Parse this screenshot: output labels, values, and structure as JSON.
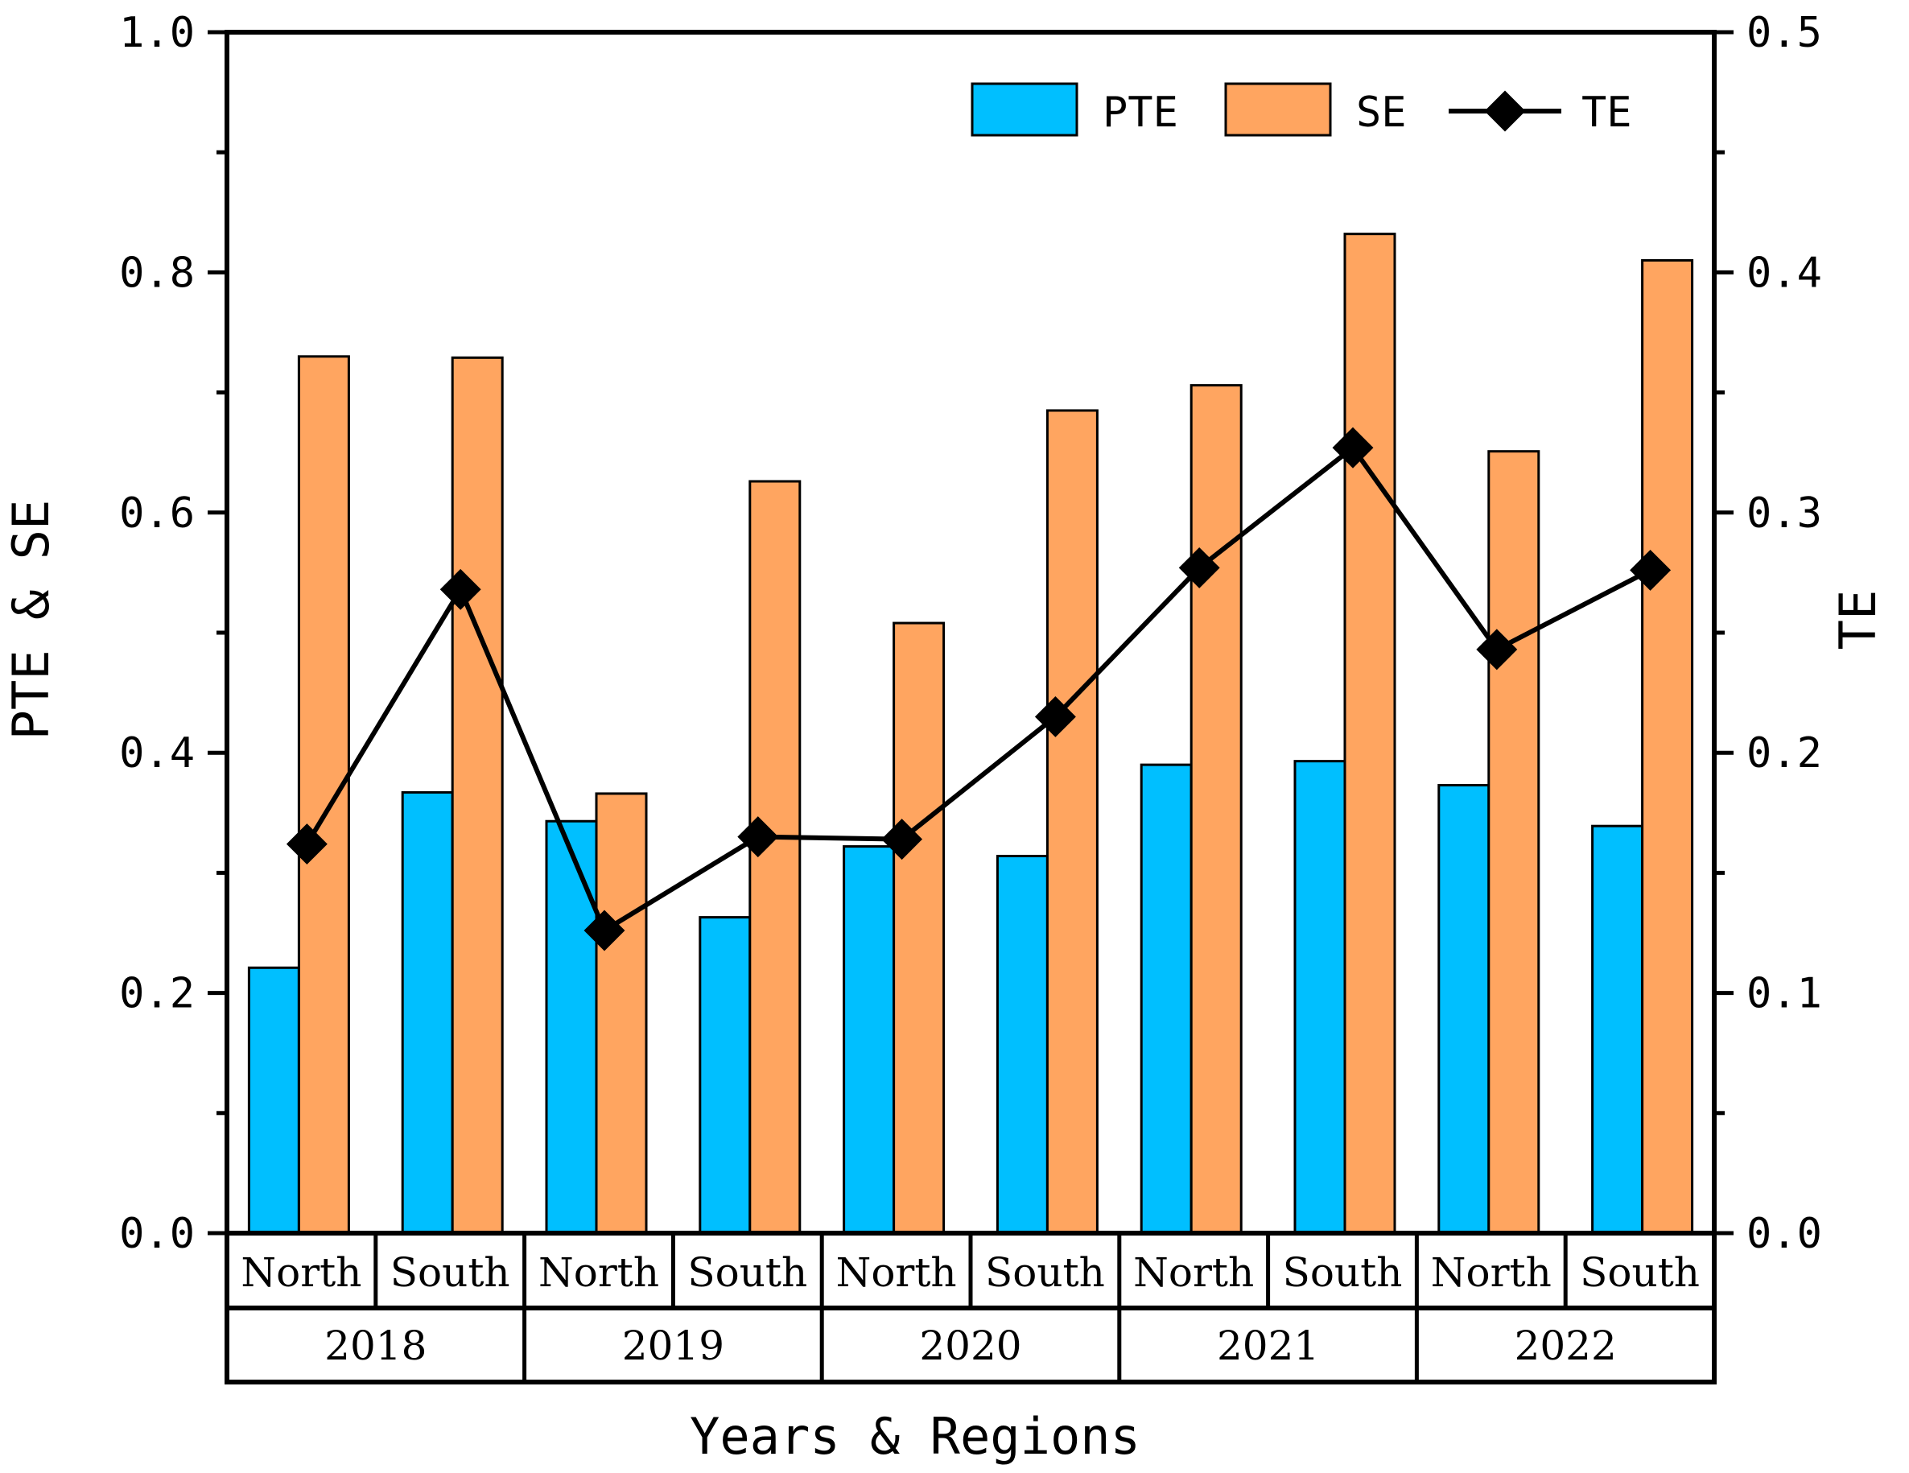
{
  "chart_data": {
    "type": "bar",
    "title": "",
    "xlabel": "Years & Regions",
    "ylabel": "PTE & SE",
    "y2label": "TE",
    "ylim": [
      0,
      1.0
    ],
    "y2lim": [
      0,
      0.5
    ],
    "yticks": [
      "0.0",
      "0.2",
      "0.4",
      "0.6",
      "0.8",
      "1.0"
    ],
    "y2ticks": [
      "0.0",
      "0.1",
      "0.2",
      "0.3",
      "0.4",
      "0.5"
    ],
    "categories": [
      "North",
      "South",
      "North",
      "South",
      "North",
      "South",
      "North",
      "South",
      "North",
      "South"
    ],
    "groups": [
      "2018",
      "2019",
      "2020",
      "2021",
      "2022"
    ],
    "legend_position": "top-right",
    "grid": false,
    "series": [
      {
        "name": "PTE",
        "type": "bar",
        "axis": "left",
        "color": "#00BFFF",
        "values": [
          0.221,
          0.367,
          0.343,
          0.263,
          0.322,
          0.314,
          0.39,
          0.393,
          0.373,
          0.339
        ]
      },
      {
        "name": "SE",
        "type": "bar",
        "axis": "left",
        "color": "#FFA560",
        "values": [
          0.73,
          0.729,
          0.366,
          0.626,
          0.508,
          0.685,
          0.706,
          0.832,
          0.651,
          0.81
        ]
      },
      {
        "name": "TE",
        "type": "line",
        "axis": "right",
        "color": "#000000",
        "marker": "diamond",
        "values": [
          0.162,
          0.268,
          0.126,
          0.165,
          0.164,
          0.215,
          0.277,
          0.327,
          0.243,
          0.276
        ]
      }
    ]
  }
}
